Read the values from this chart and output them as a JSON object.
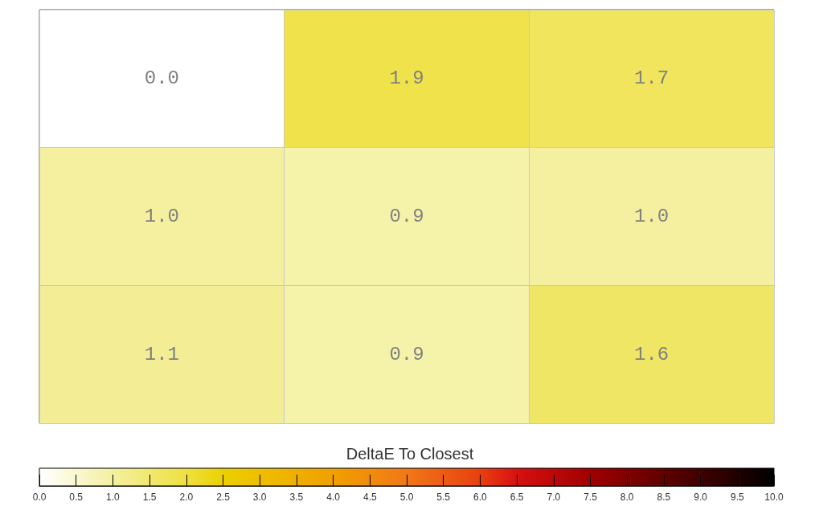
{
  "chart_data": {
    "type": "heatmap",
    "clabel": "DeltaE To Closest",
    "categories": [
      null,
      null,
      null
    ],
    "y_categories": [
      null,
      null,
      null
    ],
    "cells": [
      [
        0.0,
        1.9,
        1.7
      ],
      [
        1.0,
        0.9,
        1.0
      ],
      [
        1.1,
        0.9,
        1.6
      ]
    ],
    "cell_labels": [
      [
        "0.0",
        "1.9",
        "1.7"
      ],
      [
        "1.0",
        "0.9",
        "1.0"
      ],
      [
        "1.1",
        "0.9",
        "1.6"
      ]
    ],
    "clim": [
      0,
      10
    ],
    "cticks": [
      {
        "value": 0,
        "label": "0.0"
      },
      {
        "value": 0.5,
        "label": "0.5"
      },
      {
        "value": 1,
        "label": "1.0"
      },
      {
        "value": 1.5,
        "label": "1.5"
      },
      {
        "value": 2,
        "label": "2.0"
      },
      {
        "value": 2.5,
        "label": "2.5"
      },
      {
        "value": 3,
        "label": "3.0"
      },
      {
        "value": 3.5,
        "label": "3.5"
      },
      {
        "value": 4,
        "label": "4.0"
      },
      {
        "value": 4.5,
        "label": "4.5"
      },
      {
        "value": 5,
        "label": "5.0"
      },
      {
        "value": 5.5,
        "label": "5.5"
      },
      {
        "value": 6,
        "label": "6.0"
      },
      {
        "value": 6.5,
        "label": "6.5"
      },
      {
        "value": 7,
        "label": "7.0"
      },
      {
        "value": 7.5,
        "label": "7.5"
      },
      {
        "value": 8,
        "label": "8.0"
      },
      {
        "value": 8.5,
        "label": "8.5"
      },
      {
        "value": 9,
        "label": "9.0"
      },
      {
        "value": 9.5,
        "label": "9.5"
      },
      {
        "value": 10,
        "label": "10.0"
      }
    ],
    "grid": true
  }
}
